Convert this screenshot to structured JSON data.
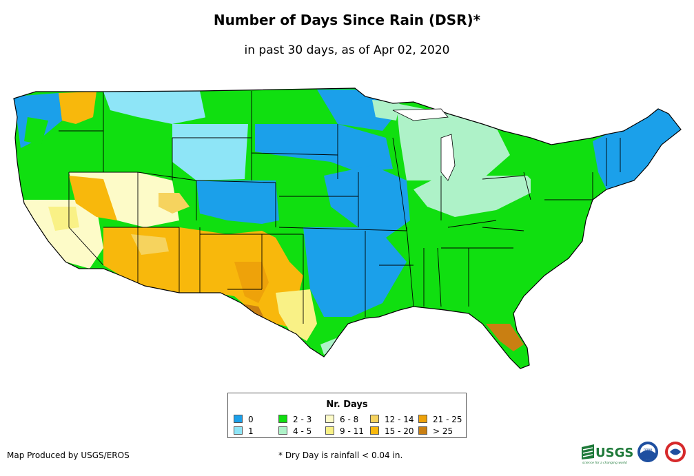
{
  "title": "Number of Days Since Rain (DSR)*",
  "subtitle": "in past 30 days, as of Apr 02, 2020",
  "legend": {
    "title": "Nr. Days",
    "items": [
      {
        "label": "0",
        "color": "#1ba0ea"
      },
      {
        "label": "1",
        "color": "#8ee5f7"
      },
      {
        "label": "2 - 3",
        "color": "#10df10"
      },
      {
        "label": "4 - 5",
        "color": "#aef2c8"
      },
      {
        "label": "6 - 8",
        "color": "#fdfbc8"
      },
      {
        "label": "9 - 11",
        "color": "#f9f186"
      },
      {
        "label": "12 - 14",
        "color": "#f6d35e"
      },
      {
        "label": "15 - 20",
        "color": "#f8b80c"
      },
      {
        "label": "21 - 25",
        "color": "#eea20a"
      },
      {
        "label": "> 25",
        "color": "#c97f12"
      }
    ]
  },
  "credit": "Map Produced by USGS/EROS",
  "footnote": "* Dry Day is rainfall < 0.04 in.",
  "logos": {
    "usgs_text": "USGS",
    "usgs_tagline": "science for a changing world",
    "noaa_text": "noaa"
  }
}
